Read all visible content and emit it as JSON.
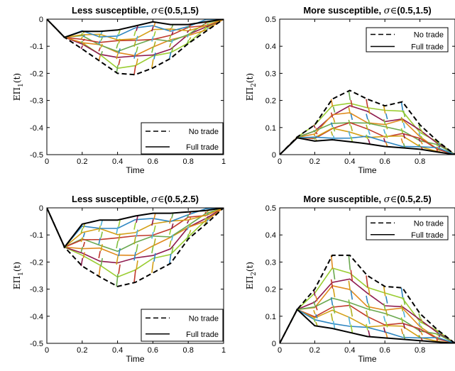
{
  "chart_data": [
    {
      "type": "line",
      "title": "Less susceptible, σ∈(0.5,1.5)",
      "title_text": "Less susceptible, ",
      "title_symbol": "σ∈",
      "title_range": "(0.5,1.5)",
      "xlabel": "Time",
      "ylabel_main": "EΠ",
      "ylabel_sub": "1",
      "ylabel_suffix": "(t)",
      "xlim": [
        0,
        1
      ],
      "ylim": [
        -0.5,
        0
      ],
      "xticks": [
        "0",
        "0.2",
        "0.4",
        "0.6",
        "0.8",
        "1"
      ],
      "yticks": [
        "-0.5",
        "-0.4",
        "-0.3",
        "-0.2",
        "-0.1",
        "0"
      ],
      "legend": {
        "position": "bottom-right",
        "entries": [
          "No trade",
          "Full trade"
        ]
      },
      "x": [
        0,
        0.1,
        0.2,
        0.3,
        0.4,
        0.5,
        0.6,
        0.7,
        0.8,
        0.9,
        1.0
      ],
      "series": [
        {
          "name": "No trade",
          "style": "dashed",
          "values": [
            0,
            -0.067,
            -0.11,
            -0.155,
            -0.2,
            -0.205,
            -0.18,
            -0.145,
            -0.09,
            -0.045,
            0
          ]
        },
        {
          "name": "Full trade",
          "style": "solid",
          "values": [
            0,
            -0.067,
            -0.045,
            -0.045,
            -0.04,
            -0.025,
            -0.01,
            -0.02,
            -0.02,
            -0.01,
            0
          ]
        }
      ]
    },
    {
      "type": "line",
      "title": "More susceptible, σ∈(0.5,1.5)",
      "title_text": "More susceptible, ",
      "title_symbol": "σ∈",
      "title_range": "(0.5,1.5)",
      "xlabel": "Time",
      "ylabel_main": "EΠ",
      "ylabel_sub": "2",
      "ylabel_suffix": "(t)",
      "xlim": [
        0,
        1
      ],
      "ylim": [
        0,
        0.5
      ],
      "xticks": [
        "0",
        "0.2",
        "0.4",
        "0.6",
        "0.8"
      ],
      "yticks": [
        "0",
        "0.1",
        "0.2",
        "0.3",
        "0.4",
        "0.5"
      ],
      "legend": {
        "position": "top-right",
        "entries": [
          "No trade",
          "Full trade"
        ]
      },
      "x": [
        0,
        0.1,
        0.2,
        0.3,
        0.4,
        0.5,
        0.6,
        0.7,
        0.8,
        0.9,
        1.0
      ],
      "series": [
        {
          "name": "No trade",
          "style": "dashed",
          "values": [
            0,
            0.065,
            0.11,
            0.205,
            0.237,
            0.205,
            0.18,
            0.195,
            0.11,
            0.05,
            0
          ]
        },
        {
          "name": "Full trade",
          "style": "solid",
          "values": [
            0,
            0.062,
            0.05,
            0.055,
            0.048,
            0.04,
            0.03,
            0.025,
            0.02,
            0.01,
            0
          ]
        }
      ]
    },
    {
      "type": "line",
      "title": "Less susceptible, σ∈(0.5,2.5)",
      "title_text": "Less susceptible, ",
      "title_symbol": "σ∈",
      "title_range": "(0.5,2.5)",
      "xlabel": "Time",
      "ylabel_main": "EΠ",
      "ylabel_sub": "1",
      "ylabel_suffix": "(t)",
      "xlim": [
        0,
        1
      ],
      "ylim": [
        -0.5,
        0
      ],
      "xticks": [
        "0",
        "0.2",
        "0.4",
        "0.6",
        "0.8",
        "1"
      ],
      "yticks": [
        "-0.5",
        "-0.4",
        "-0.3",
        "-0.2",
        "-0.1",
        "0"
      ],
      "legend": {
        "position": "bottom-right",
        "entries": [
          "No trade",
          "Full trade"
        ]
      },
      "x": [
        0,
        0.1,
        0.2,
        0.3,
        0.4,
        0.5,
        0.6,
        0.7,
        0.8,
        0.9,
        1.0
      ],
      "series": [
        {
          "name": "No trade",
          "style": "dashed",
          "values": [
            0,
            -0.145,
            -0.215,
            -0.255,
            -0.29,
            -0.275,
            -0.24,
            -0.205,
            -0.115,
            -0.06,
            0
          ]
        },
        {
          "name": "Full trade",
          "style": "solid",
          "values": [
            0,
            -0.145,
            -0.06,
            -0.045,
            -0.045,
            -0.03,
            -0.02,
            -0.02,
            -0.015,
            -0.01,
            0
          ]
        }
      ]
    },
    {
      "type": "line",
      "title": "More susceptible, σ∈(0.5,2.5)",
      "title_text": "More susceptible, ",
      "title_symbol": "σ∈",
      "title_range": "(0.5,2.5)",
      "xlabel": "Time",
      "ylabel_main": "EΠ",
      "ylabel_sub": "2",
      "ylabel_suffix": "(t)",
      "xlim": [
        0,
        1
      ],
      "ylim": [
        0,
        0.5
      ],
      "xticks": [
        "0",
        "0.2",
        "0.4",
        "0.6",
        "0.8"
      ],
      "yticks": [
        "0",
        "0.1",
        "0.2",
        "0.3",
        "0.4",
        "0.5"
      ],
      "legend": {
        "position": "top-right",
        "entries": [
          "No trade",
          "Full trade"
        ]
      },
      "x": [
        0,
        0.1,
        0.2,
        0.3,
        0.4,
        0.5,
        0.6,
        0.7,
        0.8,
        0.9,
        1.0
      ],
      "series": [
        {
          "name": "No trade",
          "style": "dashed",
          "values": [
            0,
            0.125,
            0.2,
            0.325,
            0.325,
            0.25,
            0.21,
            0.205,
            0.11,
            0.05,
            0
          ]
        },
        {
          "name": "Full trade",
          "style": "solid",
          "values": [
            0,
            0.125,
            0.065,
            0.055,
            0.04,
            0.025,
            0.02,
            0.015,
            0.01,
            0.005,
            0
          ]
        }
      ]
    }
  ],
  "mesh_colors": [
    "#4fb3d9",
    "#9acd32",
    "#8e1a4e",
    "#e08a1e",
    "#6aa84f",
    "#c0392b",
    "#d4a017",
    "#2e86c1",
    "#7fbf3f",
    "#b0b020"
  ]
}
